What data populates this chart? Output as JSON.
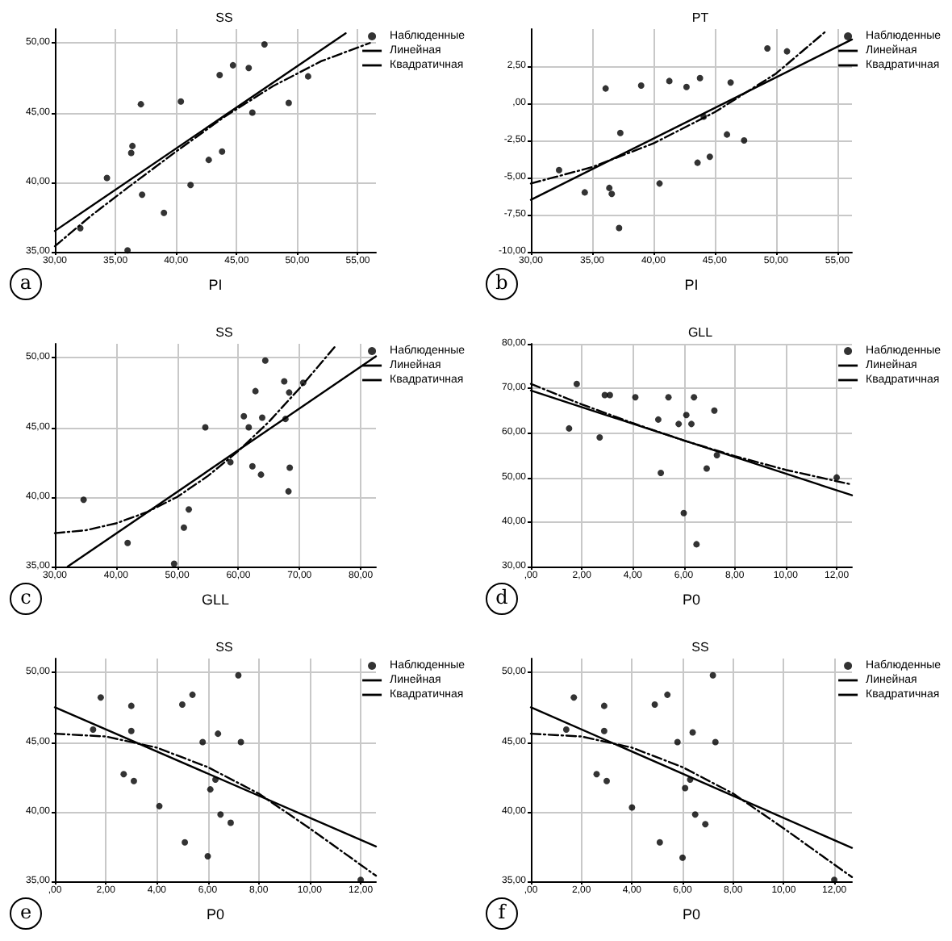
{
  "chart_data": [
    {
      "type": "scatter",
      "title": "SS",
      "xlabel": "PI",
      "grid": true,
      "legend": "top right",
      "annotations": [
        "a"
      ],
      "xlim": [
        30,
        56.5
      ],
      "ylim": [
        35,
        51
      ],
      "xticks": [
        {
          "value": 30,
          "label": "30,00"
        },
        {
          "value": 35,
          "label": "35,00"
        },
        {
          "value": 40,
          "label": "40,00"
        },
        {
          "value": 45,
          "label": "45,00"
        },
        {
          "value": 50,
          "label": "50,00"
        },
        {
          "value": 55,
          "label": "55,00"
        }
      ],
      "yticks": [
        {
          "value": 35,
          "label": "35,00"
        },
        {
          "value": 40,
          "label": "40,00"
        },
        {
          "value": 45,
          "label": "45,00"
        },
        {
          "value": 50,
          "label": "50,00"
        }
      ],
      "series": [
        {
          "name": "Наблюденные",
          "marker": "circle",
          "color": "#000000",
          "x": [
            32.1,
            34.3,
            36.0,
            36.3,
            36.4,
            37.1,
            37.2,
            39.0,
            40.4,
            41.2,
            42.7,
            43.6,
            43.8,
            44.7,
            46.0,
            46.3,
            47.3,
            49.3,
            50.9
          ],
          "values": [
            36.7,
            40.3,
            35.1,
            42.1,
            42.6,
            45.6,
            39.1,
            37.8,
            45.8,
            39.8,
            41.6,
            47.7,
            42.2,
            48.4,
            48.2,
            45.0,
            49.9,
            45.7,
            47.6
          ]
        },
        {
          "name": "Линейная",
          "type": "line",
          "marker": "none",
          "line_style": "solid",
          "color": "#000000",
          "x": [
            30,
            54
          ],
          "values": [
            36.5,
            50.7
          ]
        },
        {
          "name": "Квадратичная",
          "type": "line",
          "marker": "none",
          "line_style": "dashed",
          "color": "#000000",
          "x": [
            30,
            33,
            36,
            40,
            44,
            48,
            52,
            56
          ],
          "values": [
            35.4,
            37.6,
            39.6,
            42.2,
            44.7,
            46.9,
            48.7,
            50.0
          ]
        }
      ]
    },
    {
      "type": "scatter",
      "title": "PT",
      "xlabel": "PI",
      "grid": true,
      "legend": "top right",
      "annotations": [
        "b"
      ],
      "xlim": [
        30,
        56.2
      ],
      "ylim": [
        -10,
        5
      ],
      "xticks": [
        {
          "value": 30,
          "label": "30,00"
        },
        {
          "value": 35,
          "label": "35,00"
        },
        {
          "value": 40,
          "label": "40,00"
        },
        {
          "value": 45,
          "label": "45,00"
        },
        {
          "value": 50,
          "label": "50,00"
        },
        {
          "value": 55,
          "label": "55,00"
        }
      ],
      "yticks": [
        {
          "value": -10,
          "label": "-10,00"
        },
        {
          "value": -7.5,
          "label": "-7,50"
        },
        {
          "value": -5,
          "label": "-5,00"
        },
        {
          "value": -2.5,
          "label": "-2,50"
        },
        {
          "value": 0,
          "label": ",00"
        },
        {
          "value": 2.5,
          "label": "2,50"
        }
      ],
      "series": [
        {
          "name": "Наблюденные",
          "marker": "circle",
          "color": "#000000",
          "x": [
            32.3,
            34.4,
            36.1,
            36.4,
            36.6,
            37.3,
            37.2,
            39.0,
            40.5,
            41.3,
            42.7,
            43.6,
            43.8,
            44.1,
            44.6,
            46.0,
            46.3,
            47.4,
            49.3,
            50.9
          ],
          "values": [
            -4.5,
            -6.0,
            1.0,
            -5.7,
            -6.1,
            -2.0,
            -8.4,
            1.2,
            -5.4,
            1.5,
            1.1,
            -4.0,
            1.7,
            -0.9,
            -3.6,
            -2.1,
            1.4,
            -2.5,
            3.7,
            3.5
          ]
        },
        {
          "name": "Линейная",
          "type": "line",
          "marker": "none",
          "line_style": "solid",
          "color": "#000000",
          "x": [
            30,
            56.2
          ],
          "values": [
            -6.5,
            4.3
          ]
        },
        {
          "name": "Квадратичная",
          "type": "line",
          "marker": "none",
          "line_style": "dashed",
          "color": "#000000",
          "x": [
            30,
            35,
            40,
            45,
            50,
            54
          ],
          "values": [
            -5.4,
            -4.3,
            -2.7,
            -0.6,
            2.0,
            4.8
          ]
        }
      ]
    },
    {
      "type": "scatter",
      "title": "SS",
      "xlabel": "GLL",
      "grid": true,
      "legend": "top right",
      "annotations": [
        "c"
      ],
      "xlim": [
        30,
        82.5
      ],
      "ylim": [
        35,
        51
      ],
      "xticks": [
        {
          "value": 30,
          "label": "30,00"
        },
        {
          "value": 40,
          "label": "40,00"
        },
        {
          "value": 50,
          "label": "50,00"
        },
        {
          "value": 60,
          "label": "60,00"
        },
        {
          "value": 70,
          "label": "70,00"
        },
        {
          "value": 80,
          "label": "80,00"
        }
      ],
      "yticks": [
        {
          "value": 35,
          "label": "35,00"
        },
        {
          "value": 40,
          "label": "40,00"
        },
        {
          "value": 45,
          "label": "45,00"
        },
        {
          "value": 50,
          "label": "50,00"
        }
      ],
      "series": [
        {
          "name": "Наблюденные",
          "marker": "circle",
          "color": "#000000",
          "x": [
            34.7,
            41.9,
            49.5,
            51.1,
            51.9,
            54.6,
            58.7,
            60.9,
            61.7,
            62.3,
            62.8,
            63.7,
            63.9,
            64.4,
            67.5,
            67.7,
            68.2,
            68.3,
            68.4,
            70.6
          ],
          "values": [
            39.8,
            36.7,
            35.2,
            37.8,
            39.1,
            45.0,
            42.5,
            45.8,
            45.0,
            42.2,
            47.6,
            41.6,
            45.7,
            49.8,
            48.3,
            45.6,
            40.4,
            47.5,
            42.1,
            48.2
          ]
        },
        {
          "name": "Линейная",
          "type": "line",
          "marker": "none",
          "line_style": "solid",
          "color": "#000000",
          "x": [
            32.1,
            82.5
          ],
          "values": [
            35.0,
            50.1
          ]
        },
        {
          "name": "Квадратичная",
          "type": "line",
          "marker": "none",
          "line_style": "dashed",
          "color": "#000000",
          "x": [
            30,
            35,
            40,
            45,
            50,
            55,
            60,
            65,
            70,
            76
          ],
          "values": [
            37.4,
            37.6,
            38.1,
            38.9,
            40.0,
            41.5,
            43.3,
            45.4,
            47.8,
            50.9
          ]
        }
      ]
    },
    {
      "type": "scatter",
      "title": "GLL",
      "xlabel": "P0",
      "grid": true,
      "legend": "top right",
      "annotations": [
        "d"
      ],
      "xlim": [
        0,
        12.6
      ],
      "ylim": [
        30,
        80
      ],
      "xticks": [
        {
          "value": 0,
          "label": ",00"
        },
        {
          "value": 2,
          "label": "2,00"
        },
        {
          "value": 4,
          "label": "4,00"
        },
        {
          "value": 6,
          "label": "6,00"
        },
        {
          "value": 8,
          "label": "8,00"
        },
        {
          "value": 10,
          "label": "10,00"
        },
        {
          "value": 12,
          "label": "12,00"
        }
      ],
      "yticks": [
        {
          "value": 30,
          "label": "30,00"
        },
        {
          "value": 40,
          "label": "40,00"
        },
        {
          "value": 50,
          "label": "50,00"
        },
        {
          "value": 60,
          "label": "60,00"
        },
        {
          "value": 70,
          "label": "70,00"
        },
        {
          "value": 80,
          "label": "80,00"
        }
      ],
      "series": [
        {
          "name": "Наблюденные",
          "marker": "circle",
          "color": "#000000",
          "x": [
            1.5,
            1.8,
            2.7,
            2.9,
            3.1,
            4.1,
            5.0,
            5.1,
            5.4,
            5.8,
            6.0,
            6.1,
            6.3,
            6.4,
            6.5,
            6.9,
            7.2,
            7.3,
            12.0
          ],
          "values": [
            61,
            71,
            59,
            68.5,
            68.5,
            68,
            63,
            51,
            68,
            62,
            42,
            64,
            62,
            68,
            35,
            52,
            65,
            55,
            50
          ]
        },
        {
          "name": "Линейная",
          "type": "line",
          "marker": "none",
          "line_style": "solid",
          "color": "#000000",
          "x": [
            0,
            12.6
          ],
          "values": [
            69.5,
            46
          ]
        },
        {
          "name": "Квадратичная",
          "type": "line",
          "marker": "none",
          "line_style": "dashed",
          "color": "#000000",
          "x": [
            0,
            2,
            4,
            6,
            8,
            10,
            12.6
          ],
          "values": [
            71,
            66.4,
            62.2,
            58.3,
            54.8,
            51.7,
            48.4
          ]
        }
      ]
    },
    {
      "type": "scatter",
      "title": "SS",
      "xlabel": "P0",
      "grid": true,
      "legend": "top right",
      "annotations": [
        "e"
      ],
      "xlim": [
        0,
        12.6
      ],
      "ylim": [
        35,
        51
      ],
      "xticks": [
        {
          "value": 0,
          "label": ",00"
        },
        {
          "value": 2,
          "label": "2,00"
        },
        {
          "value": 4,
          "label": "4,00"
        },
        {
          "value": 6,
          "label": "6,00"
        },
        {
          "value": 8,
          "label": "8,00"
        },
        {
          "value": 10,
          "label": "10,00"
        },
        {
          "value": 12,
          "label": "12,00"
        }
      ],
      "yticks": [
        {
          "value": 35,
          "label": "35,00"
        },
        {
          "value": 40,
          "label": "40,00"
        },
        {
          "value": 45,
          "label": "45,00"
        },
        {
          "value": 50,
          "label": "50,00"
        }
      ],
      "series": [
        {
          "name": "Наблюденные",
          "marker": "circle",
          "color": "#000000",
          "x": [
            1.5,
            1.8,
            2.7,
            3.0,
            3.0,
            3.1,
            4.1,
            5.0,
            5.1,
            5.4,
            5.8,
            6.0,
            6.1,
            6.3,
            6.4,
            6.5,
            6.9,
            7.2,
            7.3,
            12.0
          ],
          "values": [
            45.9,
            48.2,
            42.7,
            47.6,
            45.8,
            42.2,
            40.4,
            47.7,
            37.8,
            48.4,
            45.0,
            36.8,
            41.6,
            42.3,
            45.6,
            39.8,
            39.2,
            49.8,
            45.0,
            35.1
          ]
        },
        {
          "name": "Линейная",
          "type": "line",
          "marker": "none",
          "line_style": "solid",
          "color": "#000000",
          "x": [
            0,
            12.6
          ],
          "values": [
            47.5,
            37.5
          ]
        },
        {
          "name": "Квадратичная",
          "type": "line",
          "marker": "none",
          "line_style": "dashed",
          "color": "#000000",
          "x": [
            0,
            2,
            4,
            6,
            8,
            10,
            12.6
          ],
          "values": [
            45.6,
            45.4,
            44.6,
            43.2,
            41.3,
            38.8,
            35.4
          ]
        }
      ]
    },
    {
      "type": "scatter",
      "title": "SS",
      "xlabel": "P0",
      "grid": true,
      "legend": "top right",
      "annotations": [
        "f"
      ],
      "xlim": [
        0,
        12.7
      ],
      "ylim": [
        35,
        51
      ],
      "xticks": [
        {
          "value": 0,
          "label": ",00"
        },
        {
          "value": 2,
          "label": "2,00"
        },
        {
          "value": 4,
          "label": "4,00"
        },
        {
          "value": 6,
          "label": "6,00"
        },
        {
          "value": 8,
          "label": "8,00"
        },
        {
          "value": 10,
          "label": "10,00"
        },
        {
          "value": 12,
          "label": "12,00"
        }
      ],
      "yticks": [
        {
          "value": 35,
          "label": "35,00"
        },
        {
          "value": 40,
          "label": "40,00"
        },
        {
          "value": 45,
          "label": "45,00"
        },
        {
          "value": 50,
          "label": "50,00"
        }
      ],
      "series": [
        {
          "name": "Наблюденные",
          "marker": "circle",
          "color": "#000000",
          "x": [
            1.4,
            1.7,
            2.6,
            2.9,
            2.9,
            3.0,
            4.0,
            4.9,
            5.1,
            5.4,
            5.8,
            6.0,
            6.1,
            6.3,
            6.4,
            6.5,
            6.9,
            7.2,
            7.3,
            12.0
          ],
          "values": [
            45.9,
            48.2,
            42.7,
            47.6,
            45.8,
            42.2,
            40.3,
            47.7,
            37.8,
            48.4,
            45.0,
            36.7,
            41.7,
            42.3,
            45.7,
            39.8,
            39.1,
            49.8,
            45.0,
            35.1
          ]
        },
        {
          "name": "Линейная",
          "type": "line",
          "marker": "none",
          "line_style": "solid",
          "color": "#000000",
          "x": [
            0,
            12.7
          ],
          "values": [
            47.5,
            37.4
          ]
        },
        {
          "name": "Квадратичная",
          "type": "line",
          "marker": "none",
          "line_style": "dashed",
          "color": "#000000",
          "x": [
            0,
            2,
            4,
            6,
            8,
            10,
            12.7
          ],
          "values": [
            45.6,
            45.4,
            44.6,
            43.2,
            41.3,
            38.8,
            35.3
          ]
        }
      ]
    }
  ]
}
